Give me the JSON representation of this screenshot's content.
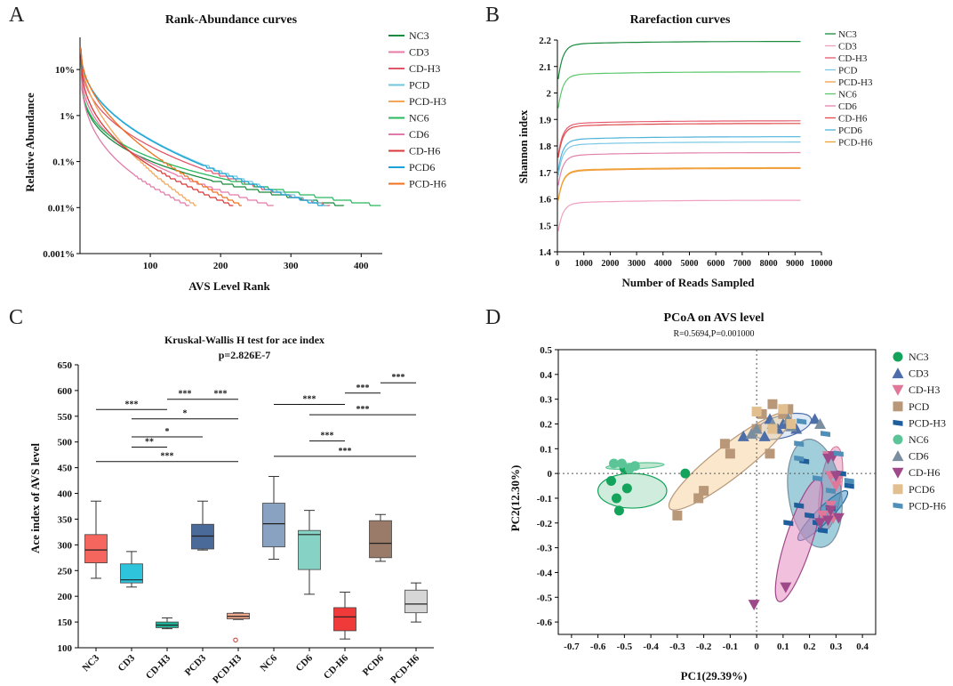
{
  "panels": {
    "a": "A",
    "b": "B",
    "c": "C",
    "d": "D"
  },
  "chart_data": [
    {
      "id": "A",
      "type": "line",
      "title": "Rank-Abundance curves",
      "xlabel": "AVS Level Rank",
      "ylabel": "Relative Abundance",
      "yscale": "log",
      "ylim": [
        0.001,
        50
      ],
      "xlim": [
        0,
        430
      ],
      "xticks": [
        100,
        200,
        300,
        400
      ],
      "yticks": [
        {
          "v": 10,
          "label": "10%"
        },
        {
          "v": 1,
          "label": "1%"
        },
        {
          "v": 0.1,
          "label": "0.1%"
        },
        {
          "v": 0.01,
          "label": "0.01%"
        },
        {
          "v": 0.001,
          "label": "0.001%"
        }
      ],
      "series": [
        {
          "name": "NC3",
          "color": "#1a8a3c",
          "end": 375
        },
        {
          "name": "CD3",
          "color": "#e879a6",
          "end": 275
        },
        {
          "name": "CD-H3",
          "color": "#e2566a",
          "end": 355
        },
        {
          "name": "PCD",
          "color": "#6fc7dc",
          "end": 352
        },
        {
          "name": "PCD-H3",
          "color": "#f2a656",
          "end": 165
        },
        {
          "name": "NC6",
          "color": "#28b85d",
          "end": 428
        },
        {
          "name": "CD6",
          "color": "#e07aa8",
          "end": 155
        },
        {
          "name": "CD-H6",
          "color": "#d93838",
          "end": 218
        },
        {
          "name": "PCD6",
          "color": "#1aa3d8",
          "end": 345
        },
        {
          "name": "PCD-H6",
          "color": "#f0721f",
          "end": 230
        }
      ]
    },
    {
      "id": "B",
      "type": "line",
      "title": "Rarefaction curves",
      "xlabel": "Number of Reads Sampled",
      "ylabel": "Shannon index",
      "xlim": [
        0,
        10000
      ],
      "ylim": [
        1.4,
        2.2
      ],
      "xticks": [
        0,
        1000,
        2000,
        3000,
        4000,
        5000,
        6000,
        7000,
        8000,
        9000,
        10000
      ],
      "yticks": [
        1.4,
        1.5,
        1.6,
        1.7,
        1.8,
        1.9,
        2,
        2.1,
        2.2
      ],
      "series": [
        {
          "name": "NC3",
          "color": "#1a8a3c",
          "plateau": 2.195
        },
        {
          "name": "CD3",
          "color": "#f0a0c0",
          "plateau": 1.595
        },
        {
          "name": "CD-H3",
          "color": "#e35a6e",
          "plateau": 1.895
        },
        {
          "name": "PCD",
          "color": "#7cc9e6",
          "plateau": 1.815
        },
        {
          "name": "PCD-H3",
          "color": "#f2a24f",
          "plateau": 1.715
        },
        {
          "name": "NC6",
          "color": "#5cc76a",
          "plateau": 2.08
        },
        {
          "name": "CD6",
          "color": "#e383ad",
          "plateau": 1.775
        },
        {
          "name": "CD-H6",
          "color": "#e04a4a",
          "plateau": 1.885
        },
        {
          "name": "PCD6",
          "color": "#4fb3d9",
          "plateau": 1.835
        },
        {
          "name": "PCD-H6",
          "color": "#f0a030",
          "plateau": 1.718
        }
      ]
    },
    {
      "id": "C",
      "type": "box",
      "title": "Kruskal-Wallis H test for ace index",
      "subtitle": "p=2.826E-7",
      "ylabel": "Ace index of AVS level",
      "ylim": [
        100,
        650
      ],
      "yticks": [
        100,
        150,
        200,
        250,
        300,
        350,
        400,
        450,
        500,
        550,
        600,
        650
      ],
      "categories": [
        "NC3",
        "CD3",
        "CD-H3",
        "PCD3",
        "PCD-H3",
        "NC6",
        "CD6",
        "CD-H6",
        "PCD6",
        "PCD-H6"
      ],
      "boxes": [
        {
          "min": 235,
          "q1": 265,
          "med": 290,
          "q3": 320,
          "max": 385,
          "color": "#f4665e"
        },
        {
          "min": 218,
          "q1": 226,
          "med": 232,
          "q3": 263,
          "max": 287,
          "color": "#2ec4dc"
        },
        {
          "min": 137,
          "q1": 139,
          "med": 144,
          "q3": 150,
          "max": 158,
          "color": "#1fae96"
        },
        {
          "min": 290,
          "q1": 292,
          "med": 317,
          "q3": 340,
          "max": 385,
          "color": "#4a6a9a"
        },
        {
          "min": 155,
          "q1": 156,
          "med": 161,
          "q3": 167,
          "max": 168,
          "color": "#f1a98e",
          "outlier": 115
        },
        {
          "min": 272,
          "q1": 296,
          "med": 341,
          "q3": 381,
          "max": 433,
          "color": "#8aa2c2"
        },
        {
          "min": 204,
          "q1": 252,
          "med": 320,
          "q3": 328,
          "max": 367,
          "color": "#86d2c4"
        },
        {
          "min": 117,
          "q1": 133,
          "med": 160,
          "q3": 178,
          "max": 208,
          "color": "#f03a3a"
        },
        {
          "min": 268,
          "q1": 275,
          "med": 303,
          "q3": 347,
          "max": 359,
          "color": "#9a7a68"
        },
        {
          "min": 150,
          "q1": 168,
          "med": 185,
          "q3": 212,
          "max": 226,
          "color": "#d6d6d6"
        }
      ],
      "brackets": [
        {
          "from": 0,
          "to": 2,
          "y": 563,
          "label": "***"
        },
        {
          "from": 2,
          "to": 3,
          "y": 583,
          "label": "***"
        },
        {
          "from": 3,
          "to": 4,
          "y": 583,
          "label": "***"
        },
        {
          "from": 1,
          "to": 4,
          "y": 545,
          "label": "*"
        },
        {
          "from": 1,
          "to": 3,
          "y": 510,
          "label": "*"
        },
        {
          "from": 1,
          "to": 2,
          "y": 490,
          "label": "**"
        },
        {
          "from": 0,
          "to": 4,
          "y": 462,
          "label": "***"
        },
        {
          "from": 5,
          "to": 7,
          "y": 573,
          "label": "***"
        },
        {
          "from": 7,
          "to": 8,
          "y": 595,
          "label": "***"
        },
        {
          "from": 8,
          "to": 9,
          "y": 615,
          "label": "***"
        },
        {
          "from": 6,
          "to": 9,
          "y": 553,
          "label": "***"
        },
        {
          "from": 6,
          "to": 7,
          "y": 502,
          "label": "***"
        },
        {
          "from": 5,
          "to": 9,
          "y": 472,
          "label": "***"
        }
      ]
    },
    {
      "id": "D",
      "type": "scatter",
      "title": "PCoA on AVS level",
      "subtitle": "R=0.5694,P=0.001000",
      "xlabel": "PC1(29.39%)",
      "ylabel": "PC2(12.30%)",
      "xlim": [
        -0.75,
        0.45
      ],
      "ylim": [
        -0.65,
        0.5
      ],
      "xticks": [
        -0.7,
        -0.6,
        -0.5,
        -0.4,
        -0.3,
        -0.2,
        -0.1,
        0,
        0.1,
        0.2,
        0.3,
        0.4
      ],
      "yticks": [
        0.5,
        0.4,
        0.3,
        0.2,
        0.1,
        0,
        -0.1,
        -0.2,
        -0.3,
        -0.4,
        -0.5,
        -0.6
      ],
      "groups": [
        {
          "name": "NC3",
          "color": "#13a35a",
          "shape": "circle",
          "points": [
            [
              -0.53,
              -0.1
            ],
            [
              -0.49,
              -0.06
            ],
            [
              -0.52,
              -0.15
            ],
            [
              -0.55,
              -0.03
            ],
            [
              -0.5,
              0.02
            ],
            [
              -0.27,
              0.0
            ]
          ],
          "ellipse": {
            "cx": -0.47,
            "cy": -0.07,
            "rx": 0.13,
            "ry": 0.07,
            "rot": 0,
            "fill": "#2aa760",
            "op": 0.22
          }
        },
        {
          "name": "CD3",
          "color": "#4d6ea8",
          "shape": "tri-up",
          "points": [
            [
              0.05,
              0.22
            ],
            [
              0.1,
              0.2
            ],
            [
              0.15,
              0.18
            ],
            [
              0.08,
              0.18
            ],
            [
              0.22,
              0.22
            ],
            [
              -0.05,
              0.15
            ],
            [
              0.03,
              0.15
            ]
          ],
          "ellipse": {
            "cx": 0.1,
            "cy": 0.19,
            "rx": 0.11,
            "ry": 0.045,
            "rot": -15,
            "fill": "#b8d0ea",
            "op": 0.45
          }
        },
        {
          "name": "CD-H3",
          "color": "#e0789a",
          "shape": "tri-down",
          "points": [
            [
              0.28,
              -0.01
            ],
            [
              0.3,
              -0.05
            ],
            [
              0.25,
              -0.17
            ],
            [
              0.29,
              -0.18
            ],
            [
              0.27,
              0.07
            ],
            [
              0.28,
              -0.13
            ],
            [
              0.31,
              -0.02
            ]
          ],
          "ellipse": {
            "cx": 0.28,
            "cy": -0.06,
            "rx": 0.04,
            "ry": 0.17,
            "rot": 8,
            "fill": "#e78bb8",
            "op": 0.5
          }
        },
        {
          "name": "PCD",
          "color": "#b9987a",
          "shape": "square",
          "points": [
            [
              -0.3,
              -0.17
            ],
            [
              -0.22,
              -0.1
            ],
            [
              -0.2,
              -0.07
            ],
            [
              -0.1,
              0.08
            ],
            [
              -0.12,
              0.12
            ],
            [
              0.0,
              0.18
            ],
            [
              0.02,
              0.24
            ],
            [
              0.06,
              0.28
            ],
            [
              0.12,
              0.26
            ],
            [
              0.1,
              0.24
            ],
            [
              0.05,
              0.08
            ]
          ],
          "ellipse": {
            "cx": -0.1,
            "cy": 0.05,
            "rx": 0.29,
            "ry": 0.065,
            "rot": -38,
            "fill": "#f5c98f",
            "op": 0.45
          }
        },
        {
          "name": "PCD-H3",
          "color": "#1f5e9c",
          "shape": "para",
          "points": [
            [
              0.16,
              -0.13
            ],
            [
              0.2,
              -0.17
            ],
            [
              0.23,
              -0.2
            ],
            [
              0.28,
              -0.14
            ],
            [
              0.32,
              0.0
            ],
            [
              0.35,
              -0.05
            ],
            [
              0.12,
              -0.2
            ],
            [
              0.18,
              0.05
            ],
            [
              0.25,
              -0.23
            ]
          ],
          "ellipse": {
            "cx": 0.25,
            "cy": -0.17,
            "rx": 0.13,
            "ry": 0.03,
            "rot": -45,
            "fill": "#2788c8",
            "op": 0.45
          }
        },
        {
          "name": "NC6",
          "color": "#5cc597",
          "shape": "circle",
          "points": [
            [
              -0.51,
              0.04
            ],
            [
              -0.54,
              0.04
            ],
            [
              -0.48,
              0.02
            ],
            [
              -0.46,
              0.03
            ]
          ],
          "ellipse": {
            "cx": -0.46,
            "cy": 0.03,
            "rx": 0.11,
            "ry": 0.012,
            "rot": -3,
            "fill": "#4cb877",
            "op": 0.35
          }
        },
        {
          "name": "CD6",
          "color": "#7a8ea0",
          "shape": "tri-up",
          "points": [
            [
              0.06,
              0.2
            ],
            [
              0.12,
              0.22
            ],
            [
              0.13,
              0.19
            ],
            [
              0.0,
              0.18
            ],
            [
              0.24,
              0.2
            ],
            [
              -0.02,
              0.16
            ]
          ],
          "ellipse": {
            "cx": 0.22,
            "cy": -0.08,
            "rx": 0.1,
            "ry": 0.22,
            "rot": -8,
            "fill": "#2e93b0",
            "op": 0.45
          }
        },
        {
          "name": "CD-H6",
          "color": "#9e4a8a",
          "shape": "tri-down",
          "points": [
            [
              0.27,
              0.06
            ],
            [
              0.29,
              0.07
            ],
            [
              0.3,
              -0.01
            ],
            [
              0.28,
              -0.15
            ],
            [
              0.27,
              -0.19
            ],
            [
              0.31,
              -0.18
            ],
            [
              -0.01,
              -0.53
            ],
            [
              0.11,
              -0.46
            ],
            [
              0.24,
              -0.2
            ]
          ],
          "ellipse": {
            "cx": 0.16,
            "cy": -0.27,
            "rx": 0.05,
            "ry": 0.26,
            "rot": 18,
            "fill": "#e58dc0",
            "op": 0.55
          }
        },
        {
          "name": "PCD6",
          "color": "#e2bf8f",
          "shape": "square",
          "points": [
            [
              0.0,
              0.25
            ],
            [
              0.1,
              0.26
            ],
            [
              0.13,
              0.2
            ],
            [
              0.06,
              0.18
            ]
          ],
          "ellipse": null
        },
        {
          "name": "PCD-H6",
          "color": "#4f8fb8",
          "shape": "para",
          "points": [
            [
              0.17,
              0.21
            ],
            [
              0.16,
              0.12
            ],
            [
              0.26,
              0.16
            ],
            [
              0.31,
              0.08
            ],
            [
              0.35,
              -0.03
            ],
            [
              0.23,
              -0.02
            ],
            [
              0.16,
              0.06
            ],
            [
              0.28,
              -0.07
            ]
          ],
          "ellipse": null
        }
      ]
    }
  ]
}
